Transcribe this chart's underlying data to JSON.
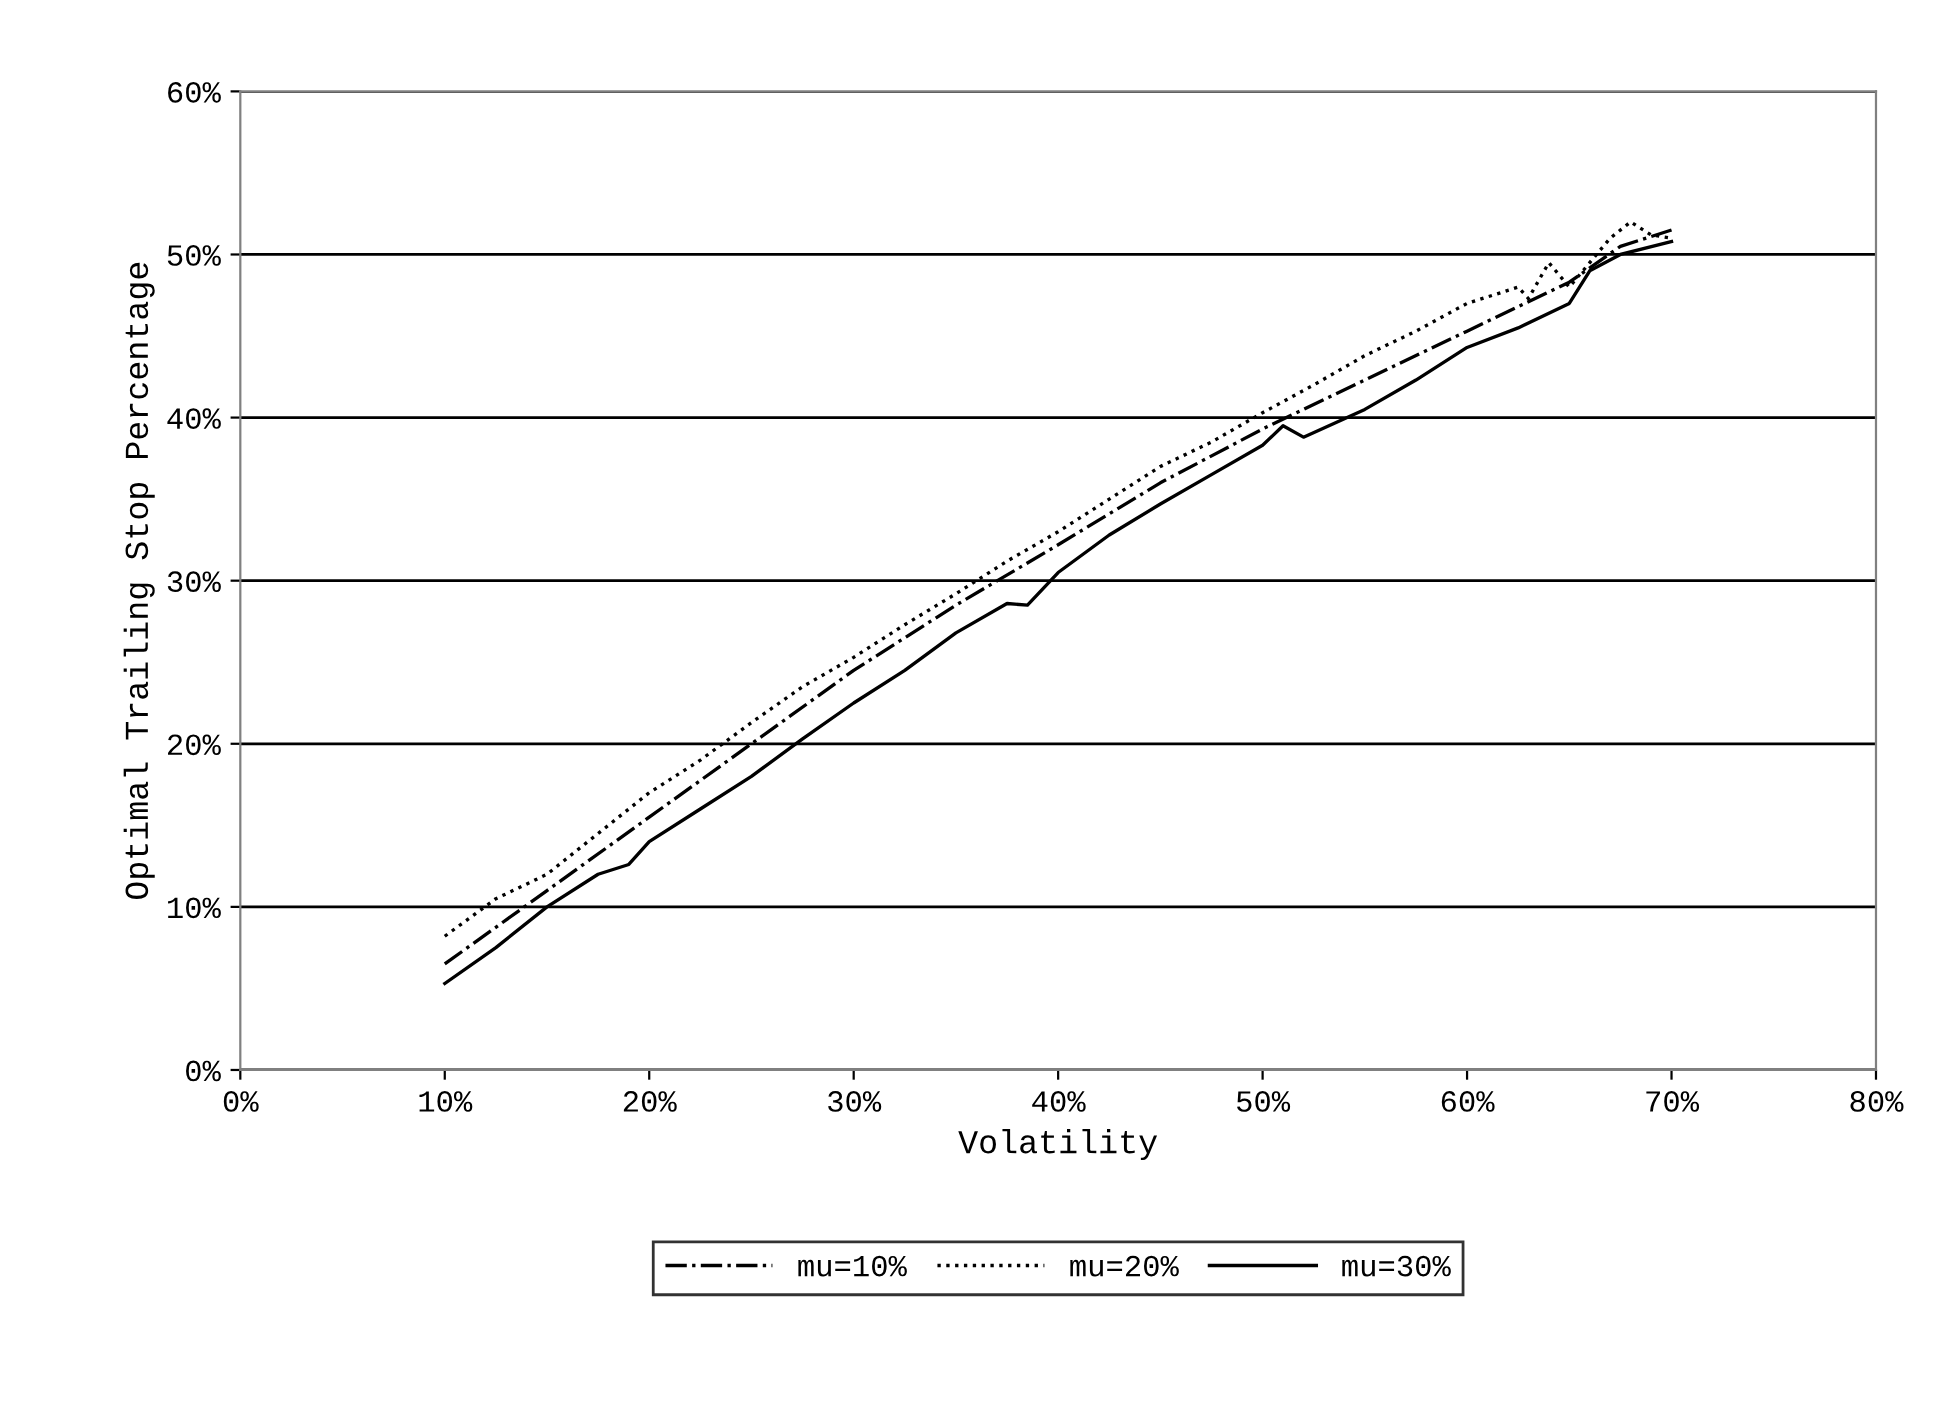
{
  "chart_data": {
    "type": "line",
    "xlabel": "Volatility",
    "ylabel": "Optimal Trailing Stop Percentage",
    "xlim": [
      0,
      80
    ],
    "xticks": [
      {
        "value": 0,
        "label": "0%"
      },
      {
        "value": 10,
        "label": "10%"
      },
      {
        "value": 20,
        "label": "20%"
      },
      {
        "value": 30,
        "label": "30%"
      },
      {
        "value": 40,
        "label": "40%"
      },
      {
        "value": 50,
        "label": "50%"
      },
      {
        "value": 60,
        "label": "60%"
      },
      {
        "value": 70,
        "label": "70%"
      },
      {
        "value": 80,
        "label": "80%"
      }
    ],
    "ylim": [
      0,
      60
    ],
    "yticks": [
      {
        "value": 0,
        "label": "0%"
      },
      {
        "value": 10,
        "label": "10%"
      },
      {
        "value": 20,
        "label": "20%"
      },
      {
        "value": 30,
        "label": "30%"
      },
      {
        "value": 40,
        "label": "40%"
      },
      {
        "value": 50,
        "label": "50%"
      },
      {
        "value": 60,
        "label": "60%"
      }
    ],
    "grid": "y",
    "legend": "bottom",
    "series": [
      {
        "name": "mu=10%",
        "color": "#000000",
        "line_style": "dashdot",
        "x": [
          10,
          15,
          20,
          25,
          30,
          35,
          40,
          45,
          50,
          55,
          60,
          65,
          67.5,
          70
        ],
        "values": [
          6.5,
          11,
          15.5,
          20,
          24.5,
          28.5,
          32.2,
          36,
          39.3,
          42.3,
          45.3,
          48.3,
          50.5,
          51.5
        ]
      },
      {
        "name": "mu=20%",
        "color": "#000000",
        "line_style": "dotted",
        "x": [
          10,
          12.5,
          15,
          17.5,
          20,
          22.5,
          25,
          27.5,
          30,
          32.5,
          35,
          37.5,
          40,
          42.5,
          45,
          47.5,
          50,
          52.5,
          55,
          57.5,
          60,
          62.5,
          63,
          64,
          65,
          66,
          67,
          68,
          69,
          70
        ],
        "values": [
          8.2,
          10.5,
          12,
          14.5,
          17,
          19,
          21.3,
          23.5,
          25.3,
          27.3,
          29.2,
          31.2,
          33,
          35,
          37,
          38.5,
          40.3,
          42,
          43.8,
          45.3,
          47,
          48,
          47.3,
          49.5,
          48,
          49.5,
          51,
          52,
          51.2,
          51
        ]
      },
      {
        "name": "mu=30%",
        "color": "#000000",
        "line_style": "solid",
        "x": [
          10,
          12.5,
          15,
          17.5,
          19,
          20,
          22.5,
          25,
          27.5,
          30,
          32.5,
          35,
          37.5,
          38.5,
          40,
          42.5,
          45,
          47.5,
          50,
          51,
          52,
          55,
          57.5,
          60,
          62.5,
          65,
          66,
          67.5,
          70
        ],
        "values": [
          5.3,
          7.5,
          10,
          12,
          12.6,
          14,
          16,
          18,
          20.3,
          22.5,
          24.5,
          26.8,
          28.6,
          28.5,
          30.5,
          32.8,
          34.7,
          36.5,
          38.3,
          39.5,
          38.8,
          40.5,
          42.3,
          44.3,
          45.5,
          47,
          49,
          50,
          50.8
        ]
      }
    ]
  }
}
